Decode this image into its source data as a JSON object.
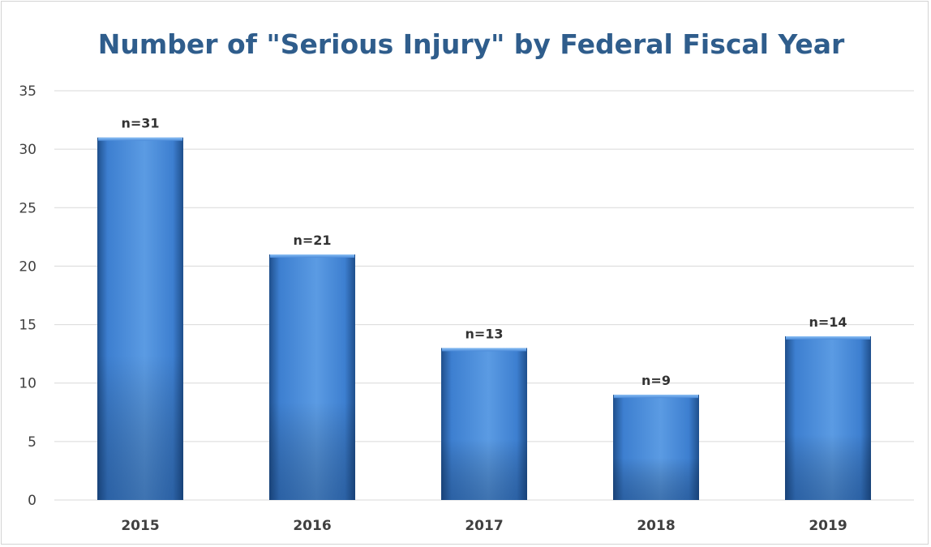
{
  "chart_data": {
    "type": "bar",
    "title": "Number of \"Serious Injury\" by Federal Fiscal Year",
    "xlabel": "",
    "ylabel": "",
    "categories": [
      "2015",
      "2016",
      "2017",
      "2018",
      "2019"
    ],
    "values": [
      31,
      21,
      13,
      9,
      14
    ],
    "data_labels": [
      "n=31",
      "n=21",
      "n=13",
      "n=9",
      "n=14"
    ],
    "ylim": [
      0,
      35
    ],
    "yticks": [
      "0",
      "5",
      "10",
      "15",
      "20",
      "25",
      "30",
      "35"
    ],
    "grid": true,
    "legend": "none",
    "colors": {
      "bar_light": "#5b9be3",
      "bar_mid": "#3d7fd0",
      "bar_dark": "#1f4f8c",
      "title": "#2f5d8c",
      "grid": "#d9d9d9"
    }
  }
}
